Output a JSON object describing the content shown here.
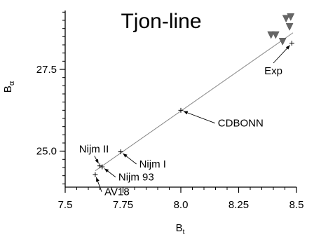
{
  "chart_data": {
    "type": "scatter",
    "title": "Tjon-line",
    "xlabel": "B",
    "xlabel_sub": "t",
    "ylabel": "B",
    "ylabel_sub": "α",
    "xlim": [
      7.5,
      8.5
    ],
    "ylim": [
      23.9,
      29.3
    ],
    "x_ticks": [
      {
        "value": 7.5,
        "label": "7.5"
      },
      {
        "value": 7.75,
        "label": "7.75"
      },
      {
        "value": 8.0,
        "label": "8.0"
      },
      {
        "value": 8.25,
        "label": "8.25"
      },
      {
        "value": 8.5,
        "label": "8.5"
      }
    ],
    "y_ticks": [
      {
        "value": 25.0,
        "label": "25.0"
      },
      {
        "value": 27.5,
        "label": "27.5"
      }
    ],
    "x_minor_step": 0.05,
    "y_minor_step": 0.25,
    "grid": false,
    "trend_line": {
      "x": [
        7.63,
        8.485
      ],
      "y": [
        24.4,
        28.62
      ]
    },
    "points": [
      {
        "name": "Nijm II",
        "x": 7.65,
        "y": 24.55
      },
      {
        "name": "Nijm 93",
        "x": 7.66,
        "y": 24.52
      },
      {
        "name": "AV18",
        "x": 7.63,
        "y": 24.28
      },
      {
        "name": "Nijm I",
        "x": 7.74,
        "y": 24.98
      },
      {
        "name": "CDBONN",
        "x": 8.0,
        "y": 26.25
      },
      {
        "name": "Exp",
        "x": 8.48,
        "y": 28.3
      }
    ],
    "triangle_markers": [
      {
        "x": 8.39,
        "y": 28.55
      },
      {
        "x": 8.41,
        "y": 28.55
      },
      {
        "x": 8.44,
        "y": 28.35
      },
      {
        "x": 8.455,
        "y": 29.05
      },
      {
        "x": 8.475,
        "y": 29.1
      },
      {
        "x": 8.47,
        "y": 28.8
      }
    ],
    "annotations": [
      {
        "text": "Nijm II",
        "target": "Nijm II",
        "label_x": 7.56,
        "label_y": 24.96,
        "anchor": "start"
      },
      {
        "text": "Nijm 93",
        "target": "Nijm 93",
        "label_x": 7.73,
        "label_y": 24.1,
        "anchor": "start"
      },
      {
        "text": "AV18",
        "target": "AV18",
        "label_x": 7.67,
        "label_y": 23.65,
        "anchor": "start"
      },
      {
        "text": "Nijm I",
        "target": "Nijm I",
        "label_x": 7.82,
        "label_y": 24.5,
        "anchor": "start"
      },
      {
        "text": "CDBONN",
        "target": "CDBONN",
        "label_x": 8.16,
        "label_y": 25.75,
        "anchor": "start"
      },
      {
        "text": "Exp",
        "target": "Exp",
        "label_x": 8.4,
        "label_y": 27.35,
        "anchor": "middle"
      }
    ]
  }
}
